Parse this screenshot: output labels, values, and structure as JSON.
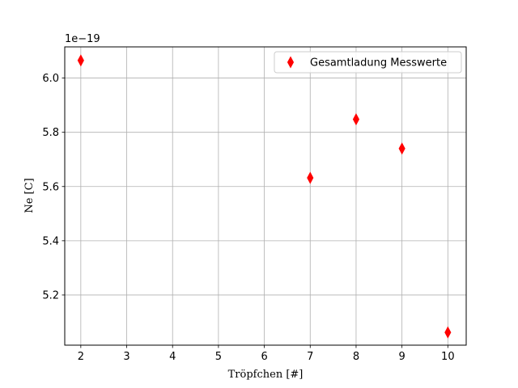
{
  "chart_data": {
    "type": "scatter",
    "xlabel": "Tröpfchen [#]",
    "ylabel": "Ne [C]",
    "offset_text": "1e−19",
    "xlim": [
      1.65,
      10.4
    ],
    "ylim": [
      5.015,
      6.115
    ],
    "x_ticks": [
      2,
      3,
      4,
      5,
      6,
      7,
      8,
      9,
      10
    ],
    "y_ticks": [
      5.2,
      5.4,
      5.6,
      5.8,
      6.0
    ],
    "grid": true,
    "legend_position": "top-right",
    "series": [
      {
        "name": "Gesamtladung Messwerte",
        "marker": "thin-diamond",
        "color": "#ff0000",
        "x": [
          2,
          7,
          8,
          9,
          10
        ],
        "y": [
          6.065,
          5.632,
          5.848,
          5.74,
          5.062
        ]
      }
    ]
  }
}
